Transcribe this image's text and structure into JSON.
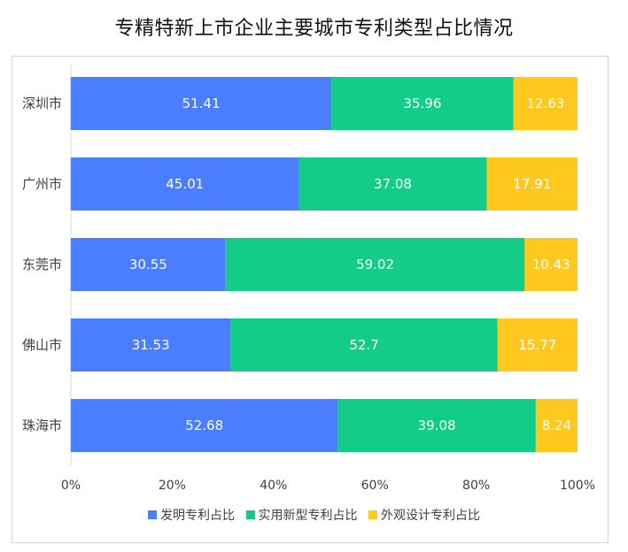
{
  "chart_data": {
    "type": "bar",
    "orientation": "horizontal",
    "stacked": true,
    "title": "专精特新上市企业主要城市专利类型占比情况",
    "categories": [
      "深圳市",
      "广州市",
      "东莞市",
      "佛山市",
      "珠海市"
    ],
    "series": [
      {
        "name": "发明专利占比",
        "color": "#4a7eff",
        "values": [
          51.41,
          45.01,
          30.55,
          31.53,
          52.68
        ]
      },
      {
        "name": "实用新型专利占比",
        "color": "#12cc88",
        "values": [
          35.96,
          37.08,
          59.02,
          52.7,
          39.08
        ]
      },
      {
        "name": "外观设计专利占比",
        "color": "#ffc81e",
        "values": [
          12.63,
          17.91,
          10.43,
          15.77,
          8.24
        ]
      }
    ],
    "xlim": [
      0,
      100
    ],
    "x_ticks": [
      "0%",
      "20%",
      "40%",
      "60%",
      "80%",
      "100%"
    ],
    "legend_position": "bottom",
    "grid": false
  }
}
